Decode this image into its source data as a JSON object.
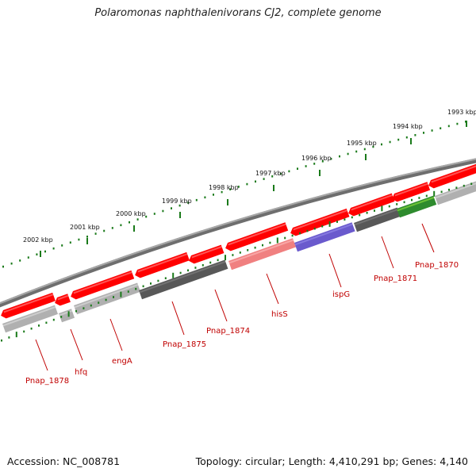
{
  "title": "Polaromonas naphthalenivorans CJ2, complete genome",
  "accession": "Accession: NC_008781",
  "summary": "Topology: circular; Length: 4,410,291 bp; Genes: 4,140",
  "kbp_ticks": [
    "1993 kbp",
    "1994 kbp",
    "1995 kbp",
    "1996 kbp",
    "1997 kbp",
    "1998 kbp",
    "1999 kbp",
    "2000 kbp",
    "2001 kbp",
    "2002 kbp"
  ],
  "gene_labels": [
    "Pnap_1870",
    "Pnap_1871",
    "ispG",
    "hisS",
    "Pnap_1874",
    "Pnap_1875",
    "engA",
    "hfq",
    "Pnap_1878"
  ],
  "colors": {
    "forward": "#ff0000",
    "backbone": "#808080",
    "tick": "#1a7a1a",
    "label": "#c00000",
    "gray_light": "#b0b0b0",
    "gray_dark": "#585858",
    "pink": "#f08080",
    "blue": "#6a5acd",
    "green_dark": "#2e8b2e",
    "green_light": "#a0f040"
  }
}
